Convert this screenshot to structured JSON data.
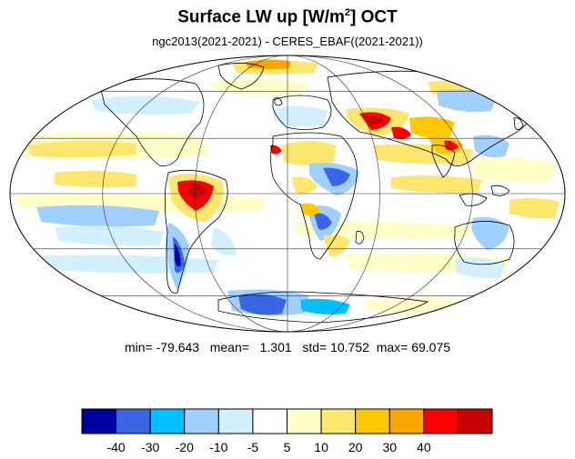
{
  "title": {
    "main": "Surface LW up [W/m",
    "sup": "2",
    "rest": "]  OCT"
  },
  "subtitle": "ngc2013(2021-2021) - CERES_EBAF((2021-2021))",
  "stats": {
    "min_label": "min=",
    "min": "-79.643",
    "mean_label": "mean=",
    "mean": "1.301",
    "std_label": "std=",
    "std": "10.752",
    "max_label": "max=",
    "max": "69.075"
  },
  "colorbar": {
    "colors": [
      "#0000a0",
      "#3a66e6",
      "#00c0ff",
      "#a0d0ff",
      "#d2f0ff",
      "#ffffff",
      "#ffffc8",
      "#ffe66e",
      "#ffc800",
      "#ffa500",
      "#ff0000",
      "#c80000"
    ],
    "ticks": [
      "-40",
      "-30",
      "-20",
      "-10",
      "-5",
      "5",
      "10",
      "20",
      "30",
      "40"
    ]
  },
  "map": {
    "projection": "mollweide",
    "colors": {
      "warm_light": "#ffffc8",
      "warm": "#ffe66e",
      "warm_strong": "#ffc800",
      "orange": "#ffa500",
      "red": "#ff0000",
      "darkred": "#c80000",
      "cool_light": "#d2f0ff",
      "cool": "#a0d0ff",
      "cool_strong": "#00c0ff",
      "blue": "#3a66e6",
      "navy": "#0000a0"
    }
  }
}
